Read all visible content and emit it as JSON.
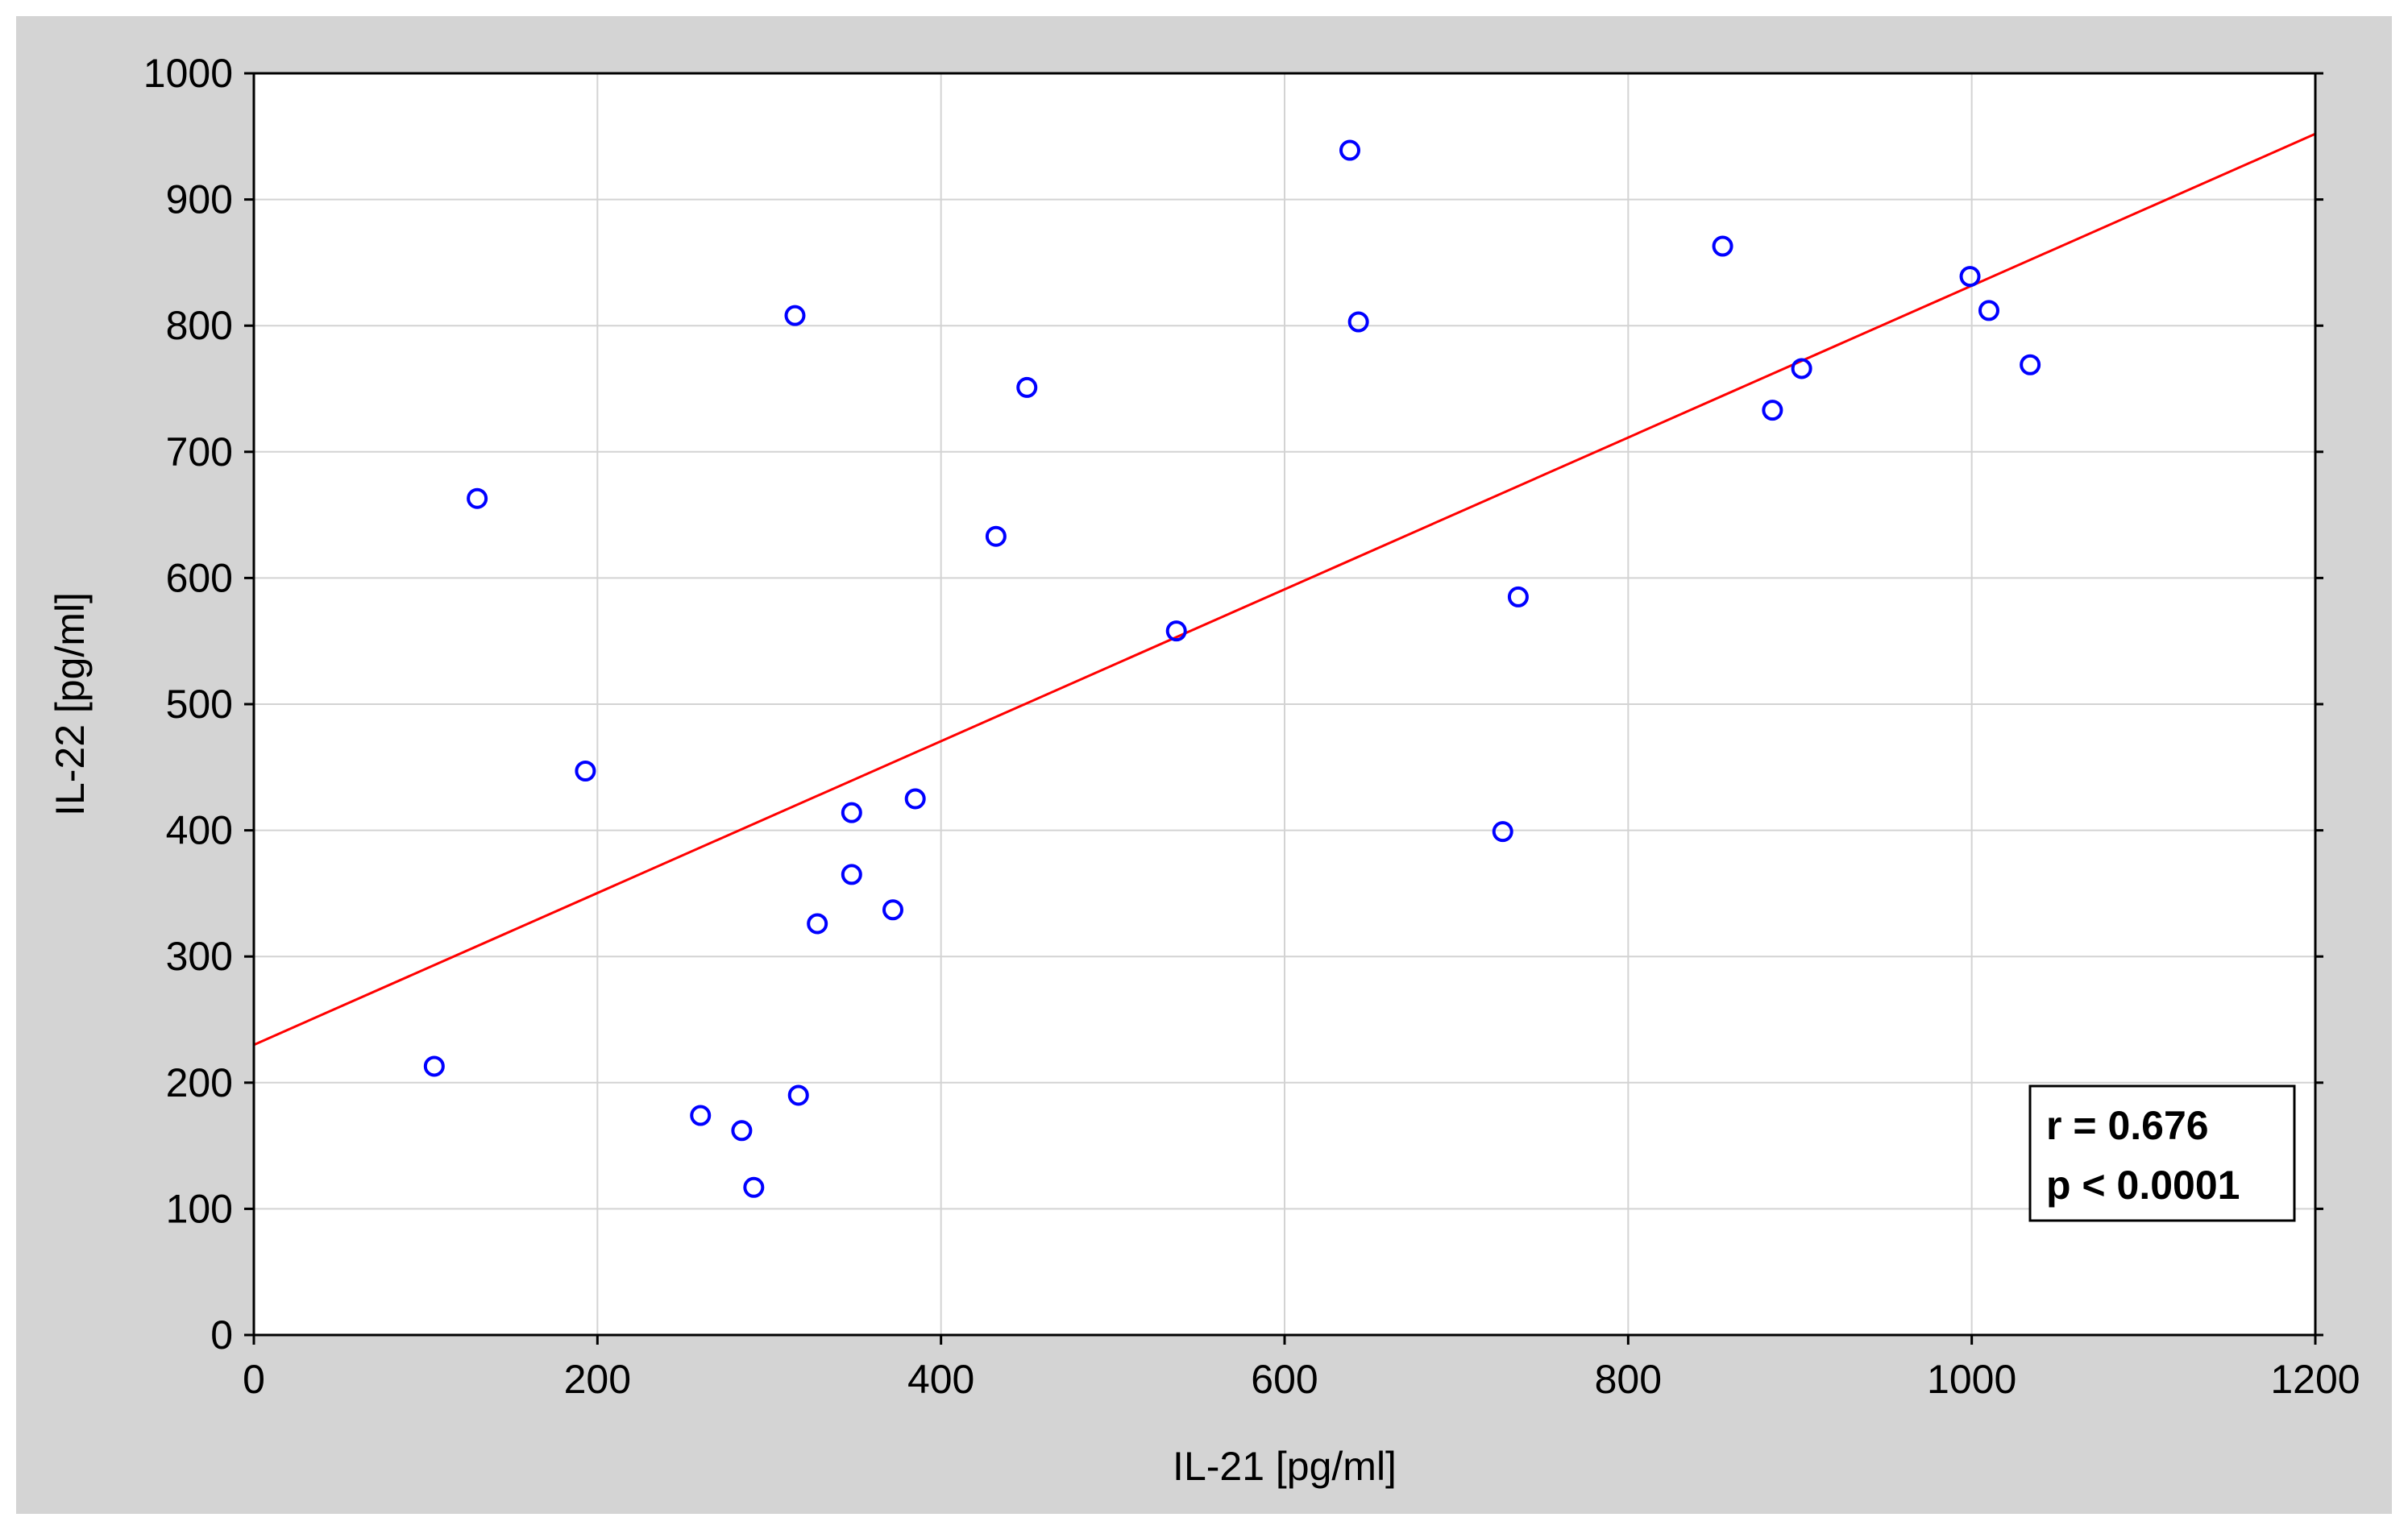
{
  "chart_data": {
    "type": "scatter",
    "title": "",
    "xlabel": "IL-21 [pg/ml]",
    "ylabel": "IL-22 [pg/ml]",
    "xlim": [
      0,
      1200
    ],
    "ylim": [
      0,
      1000
    ],
    "x_ticks": [
      0,
      200,
      400,
      600,
      800,
      1000,
      1200
    ],
    "y_ticks": [
      0,
      100,
      200,
      300,
      400,
      500,
      600,
      700,
      800,
      900,
      1000
    ],
    "grid": true,
    "series": [
      {
        "marker": "open-circle",
        "color": "#0000ff",
        "points": [
          {
            "x": 105,
            "y": 213
          },
          {
            "x": 130,
            "y": 663
          },
          {
            "x": 193,
            "y": 447
          },
          {
            "x": 260,
            "y": 174
          },
          {
            "x": 284,
            "y": 162
          },
          {
            "x": 291,
            "y": 117
          },
          {
            "x": 315,
            "y": 808
          },
          {
            "x": 317,
            "y": 190
          },
          {
            "x": 328,
            "y": 326
          },
          {
            "x": 348,
            "y": 414
          },
          {
            "x": 348,
            "y": 365
          },
          {
            "x": 372,
            "y": 337
          },
          {
            "x": 385,
            "y": 425
          },
          {
            "x": 432,
            "y": 633
          },
          {
            "x": 450,
            "y": 751
          },
          {
            "x": 537,
            "y": 558
          },
          {
            "x": 638,
            "y": 939
          },
          {
            "x": 643,
            "y": 803
          },
          {
            "x": 727,
            "y": 399
          },
          {
            "x": 736,
            "y": 585
          },
          {
            "x": 855,
            "y": 863
          },
          {
            "x": 884,
            "y": 733
          },
          {
            "x": 901,
            "y": 766
          },
          {
            "x": 999,
            "y": 839
          },
          {
            "x": 1010,
            "y": 812
          },
          {
            "x": 1034,
            "y": 769
          }
        ]
      }
    ],
    "trendline": {
      "color": "#ff0000",
      "points": [
        {
          "x": 0,
          "y": 230
        },
        {
          "x": 1200,
          "y": 952
        }
      ]
    },
    "annotation": {
      "position": "bottom-right",
      "lines": [
        "r = 0.676",
        "p < 0.0001"
      ]
    },
    "colors": {
      "frame_background": "#d4d4d4",
      "plot_background": "#ffffff",
      "grid": "#d3d3d3"
    }
  }
}
